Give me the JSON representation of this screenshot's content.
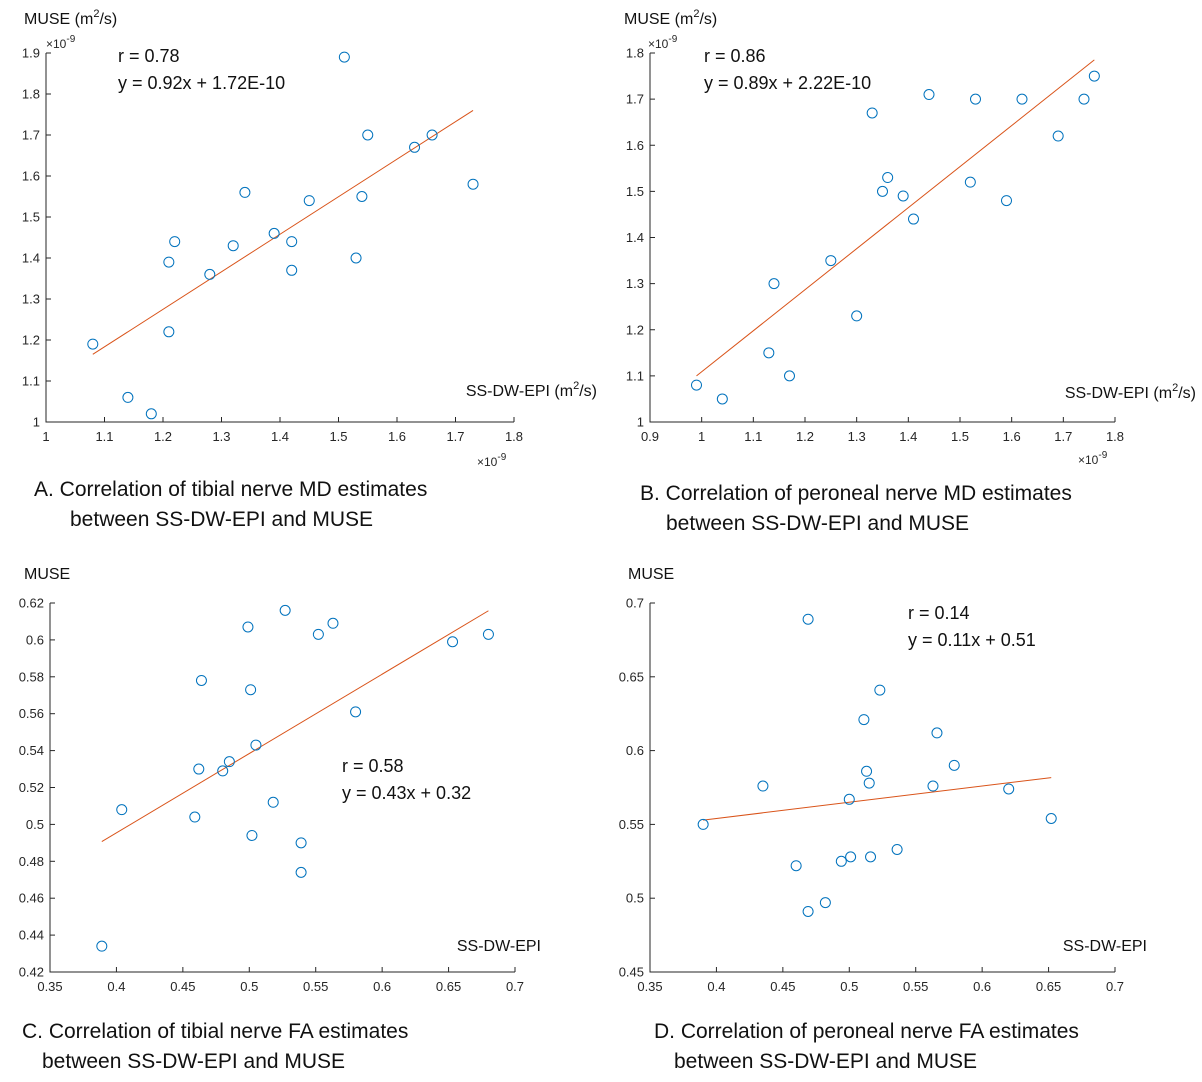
{
  "chart_data": [
    {
      "type": "scatter",
      "panel": "A",
      "ylabel": "MUSE (m²/s)",
      "xlabel": "SS-DW-EPI (m²/s)",
      "xlim": [
        1,
        1.8
      ],
      "ylim": [
        1,
        1.9
      ],
      "xticks": [
        "1",
        "1.1",
        "1.2",
        "1.3",
        "1.4",
        "1.5",
        "1.6",
        "1.7",
        "1.8"
      ],
      "yticks": [
        "1",
        "1.1",
        "1.2",
        "1.3",
        "1.4",
        "1.5",
        "1.6",
        "1.7",
        "1.8",
        "1.9"
      ],
      "x_multiplier": "×10-9",
      "y_multiplier": "×10-9",
      "r_text": "r = 0.78",
      "eq_text": "y = 0.92x + 1.72E-10",
      "fit": {
        "x": [
          1.08,
          1.73
        ],
        "y": [
          1.165,
          1.76
        ]
      },
      "points": {
        "x": [
          1.08,
          1.14,
          1.18,
          1.21,
          1.21,
          1.22,
          1.28,
          1.32,
          1.34,
          1.39,
          1.42,
          1.42,
          1.45,
          1.51,
          1.53,
          1.54,
          1.55,
          1.63,
          1.66,
          1.73
        ],
        "y": [
          1.19,
          1.06,
          1.02,
          1.22,
          1.39,
          1.44,
          1.36,
          1.43,
          1.56,
          1.46,
          1.44,
          1.37,
          1.54,
          1.89,
          1.4,
          1.55,
          1.7,
          1.67,
          1.7,
          1.58
        ]
      },
      "caption_lines": [
        "A.   Correlation of tibial nerve MD estimates",
        "between SS-DW-EPI and MUSE"
      ]
    },
    {
      "type": "scatter",
      "panel": "B",
      "ylabel": "MUSE (m²/s)",
      "xlabel": "SS-DW-EPI (m²/s)",
      "xlim": [
        0.9,
        1.8
      ],
      "ylim": [
        1,
        1.8
      ],
      "xticks": [
        "0.9",
        "1",
        "1.1",
        "1.2",
        "1.3",
        "1.4",
        "1.5",
        "1.6",
        "1.7",
        "1.8"
      ],
      "yticks": [
        "1",
        "1.1",
        "1.2",
        "1.3",
        "1.4",
        "1.5",
        "1.6",
        "1.7",
        "1.8"
      ],
      "x_multiplier": "×10-9",
      "y_multiplier": "×10-9",
      "r_text": "r = 0.86",
      "eq_text": "y = 0.89x + 2.22E-10",
      "fit": {
        "x": [
          0.99,
          1.76
        ],
        "y": [
          1.1,
          1.785
        ]
      },
      "points": {
        "x": [
          0.99,
          1.04,
          1.13,
          1.14,
          1.17,
          1.25,
          1.3,
          1.33,
          1.35,
          1.36,
          1.39,
          1.41,
          1.44,
          1.52,
          1.53,
          1.59,
          1.62,
          1.69,
          1.74,
          1.76
        ],
        "y": [
          1.08,
          1.05,
          1.15,
          1.3,
          1.1,
          1.35,
          1.23,
          1.67,
          1.5,
          1.53,
          1.49,
          1.44,
          1.71,
          1.52,
          1.7,
          1.48,
          1.7,
          1.62,
          1.7,
          1.75
        ]
      },
      "caption_lines": [
        "B. Correlation of peroneal nerve MD estimates",
        "between SS-DW-EPI and MUSE"
      ]
    },
    {
      "type": "scatter",
      "panel": "C",
      "ylabel": "MUSE",
      "xlabel": "SS-DW-EPI",
      "xlim": [
        0.35,
        0.7
      ],
      "ylim": [
        0.42,
        0.62
      ],
      "xticks": [
        "0.35",
        "0.4",
        "0.45",
        "0.5",
        "0.55",
        "0.6",
        "0.65",
        "0.7"
      ],
      "yticks": [
        "0.42",
        "0.44",
        "0.46",
        "0.48",
        "0.5",
        "0.52",
        "0.54",
        "0.56",
        "0.58",
        "0.6",
        "0.62"
      ],
      "r_text": "r = 0.58",
      "eq_text": "y = 0.43x + 0.32",
      "fit": {
        "x": [
          0.389,
          0.68
        ],
        "y": [
          0.4907,
          0.6158
        ]
      },
      "points": {
        "x": [
          0.389,
          0.404,
          0.459,
          0.462,
          0.464,
          0.48,
          0.485,
          0.499,
          0.501,
          0.502,
          0.505,
          0.518,
          0.527,
          0.539,
          0.539,
          0.552,
          0.563,
          0.58,
          0.653,
          0.68
        ],
        "y": [
          0.434,
          0.508,
          0.504,
          0.53,
          0.578,
          0.529,
          0.534,
          0.607,
          0.573,
          0.494,
          0.543,
          0.512,
          0.616,
          0.49,
          0.474,
          0.603,
          0.609,
          0.561,
          0.599,
          0.603
        ]
      },
      "caption_lines": [
        "C. Correlation of tibial nerve FA estimates",
        "between SS-DW-EPI and MUSE"
      ]
    },
    {
      "type": "scatter",
      "panel": "D",
      "ylabel": "MUSE",
      "xlabel": "SS-DW-EPI",
      "xlim": [
        0.35,
        0.7
      ],
      "ylim": [
        0.45,
        0.7
      ],
      "xticks": [
        "0.35",
        "0.4",
        "0.45",
        "0.5",
        "0.55",
        "0.6",
        "0.65",
        "0.7"
      ],
      "yticks": [
        "0.45",
        "0.5",
        "0.55",
        "0.6",
        "0.65",
        "0.7"
      ],
      "r_text": "r = 0.14",
      "eq_text": "y = 0.11x + 0.51",
      "fit": {
        "x": [
          0.39,
          0.652
        ],
        "y": [
          0.5529,
          0.5817
        ]
      },
      "points": {
        "x": [
          0.39,
          0.435,
          0.46,
          0.469,
          0.469,
          0.482,
          0.494,
          0.5,
          0.501,
          0.511,
          0.513,
          0.515,
          0.516,
          0.523,
          0.536,
          0.563,
          0.566,
          0.579,
          0.62,
          0.652
        ],
        "y": [
          0.55,
          0.576,
          0.522,
          0.689,
          0.491,
          0.497,
          0.525,
          0.567,
          0.528,
          0.621,
          0.586,
          0.578,
          0.528,
          0.641,
          0.533,
          0.576,
          0.612,
          0.59,
          0.574,
          0.554
        ]
      },
      "caption_lines": [
        "D. Correlation of peroneal nerve FA estimates",
        "between SS-DW-EPI and MUSE"
      ]
    }
  ]
}
